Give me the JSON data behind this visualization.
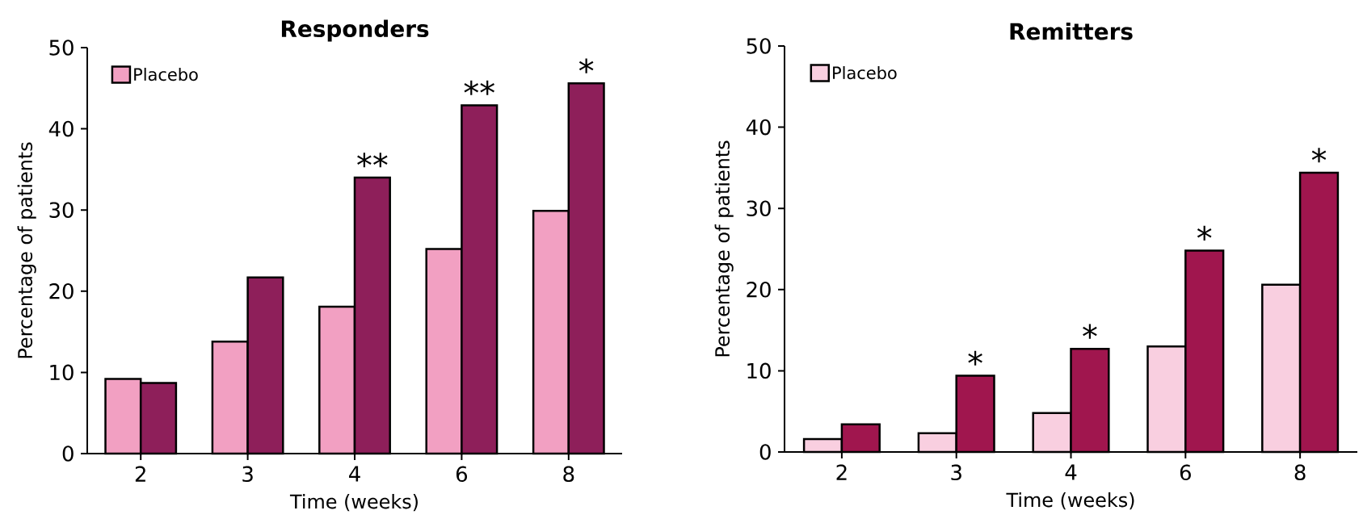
{
  "chart_data": [
    {
      "type": "bar",
      "title": "Responders",
      "xlabel": "Time (weeks)",
      "ylabel": "Percentage of patients",
      "categories": [
        "2",
        "3",
        "4",
        "6",
        "8"
      ],
      "series": [
        {
          "name": "Placebo",
          "color": "#f2a0c2",
          "values": [
            9.2,
            13.8,
            18.1,
            25.2,
            29.9
          ]
        },
        {
          "color": "#8e1f5a",
          "values": [
            8.7,
            21.7,
            34.0,
            42.9,
            45.6
          ]
        }
      ],
      "ylim": [
        0,
        50
      ],
      "yticks": [
        0,
        10,
        20,
        30,
        40,
        50
      ],
      "legend": "top left",
      "annotations": [
        {
          "text": "**",
          "x": "4",
          "y": 34.0
        },
        {
          "text": "**",
          "x": "6",
          "y": 42.9
        },
        {
          "text": "*",
          "x": "8",
          "y": 45.6
        }
      ]
    },
    {
      "type": "bar",
      "title": "Remitters",
      "xlabel": "Time (weeks)",
      "ylabel": "Percentage of patients",
      "categories": [
        "2",
        "3",
        "4",
        "6",
        "8"
      ],
      "series": [
        {
          "name": "Placebo",
          "color": "#f9cfe0",
          "values": [
            1.6,
            2.3,
            4.8,
            13.0,
            20.6
          ]
        },
        {
          "color": "#a0164e",
          "values": [
            3.4,
            9.4,
            12.7,
            24.8,
            34.4
          ]
        }
      ],
      "ylim": [
        0,
        50
      ],
      "yticks": [
        0,
        10,
        20,
        30,
        40,
        50
      ],
      "legend": "top left",
      "annotations": [
        {
          "text": "*",
          "x": "3",
          "y": 9.4
        },
        {
          "text": "*",
          "x": "4",
          "y": 12.7
        },
        {
          "text": "*",
          "x": "6",
          "y": 24.8
        },
        {
          "text": "*",
          "x": "8",
          "y": 34.4
        }
      ]
    }
  ]
}
